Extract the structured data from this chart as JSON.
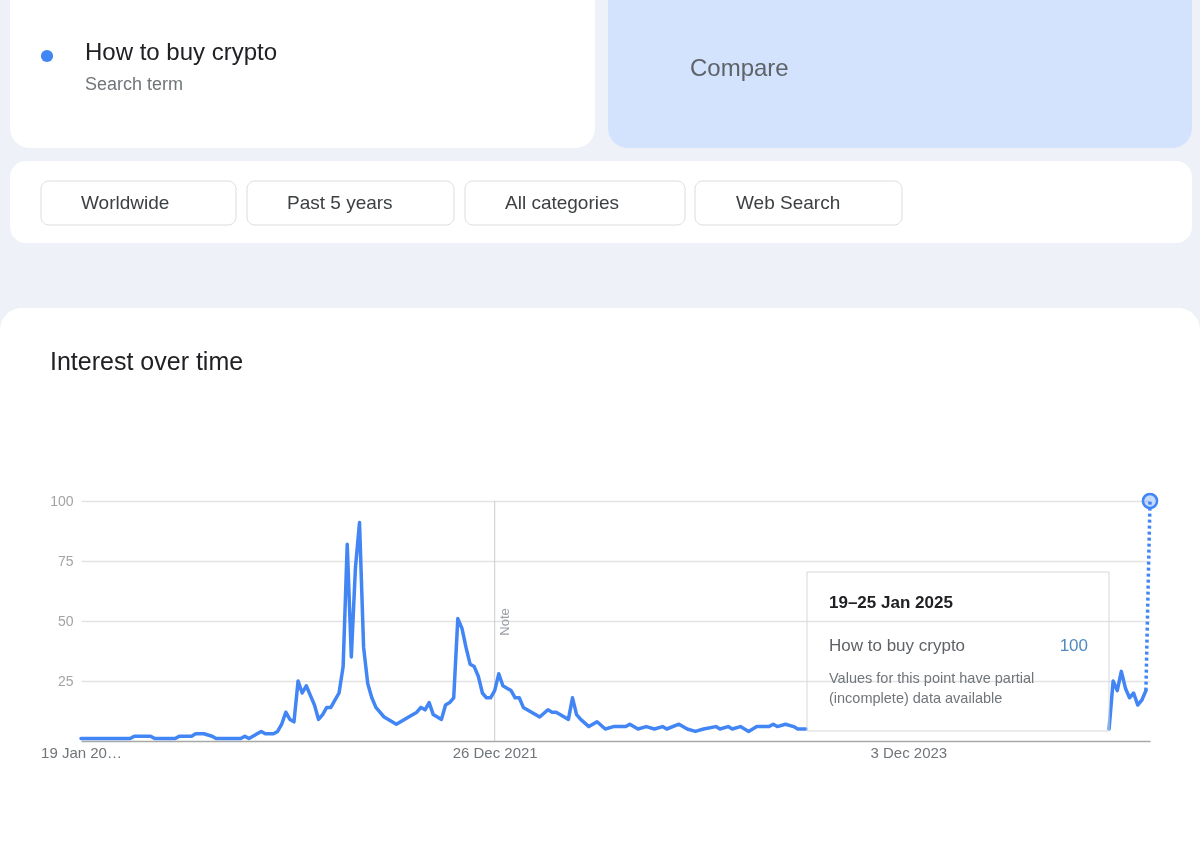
{
  "chart_data": {
    "type": "line",
    "title": "Interest over time",
    "legend": "top left",
    "grid": "y",
    "xlim": [
      "2020-01-19",
      "2025-01-19"
    ],
    "xticks": [
      {
        "value": "2020-01-19",
        "label": "19 Jan 20…"
      },
      {
        "value": "2021-12-26",
        "label": "26 Dec 2021"
      },
      {
        "value": "2023-12-03",
        "label": "3 Dec 2023"
      }
    ],
    "ylim": [
      0,
      100
    ],
    "yticks": [
      25,
      50,
      75,
      100
    ],
    "ref_lines": [
      {
        "axis": "x",
        "value": "2021-12-26",
        "label": "Note",
        "color": "#cccccc"
      }
    ],
    "series": [
      {
        "name": "How to buy crypto",
        "color": "#4285f4",
        "x": [
          "2020-01-19",
          "2020-04-12",
          "2020-04-19",
          "2020-05-17",
          "2020-05-24",
          "2020-06-28",
          "2020-07-05",
          "2020-07-26",
          "2020-08-02",
          "2020-08-16",
          "2020-08-30",
          "2020-09-06",
          "2020-10-18",
          "2020-10-25",
          "2020-11-01",
          "2020-11-15",
          "2020-11-22",
          "2020-11-29",
          "2020-12-13",
          "2020-12-20",
          "2020-12-27",
          "2021-01-03",
          "2021-01-10",
          "2021-01-17",
          "2021-01-24",
          "2021-01-31",
          "2021-02-07",
          "2021-02-14",
          "2021-02-21",
          "2021-02-28",
          "2021-03-07",
          "2021-03-14",
          "2021-03-21",
          "2021-03-28",
          "2021-04-04",
          "2021-04-11",
          "2021-04-18",
          "2021-04-25",
          "2021-05-02",
          "2021-05-09",
          "2021-05-16",
          "2021-05-23",
          "2021-05-30",
          "2021-06-06",
          "2021-06-20",
          "2021-07-11",
          "2021-08-01",
          "2021-08-15",
          "2021-08-22",
          "2021-08-29",
          "2021-09-05",
          "2021-09-12",
          "2021-09-26",
          "2021-10-03",
          "2021-10-10",
          "2021-10-17",
          "2021-10-24",
          "2021-10-31",
          "2021-11-07",
          "2021-11-14",
          "2021-11-21",
          "2021-11-28",
          "2021-12-05",
          "2021-12-12",
          "2021-12-19",
          "2021-12-26",
          "2022-01-02",
          "2022-01-09",
          "2022-01-16",
          "2022-01-23",
          "2022-01-30",
          "2022-02-06",
          "2022-02-13",
          "2022-02-27",
          "2022-03-13",
          "2022-03-27",
          "2022-04-03",
          "2022-04-10",
          "2022-04-24",
          "2022-05-01",
          "2022-05-08",
          "2022-05-15",
          "2022-05-22",
          "2022-06-05",
          "2022-06-19",
          "2022-07-03",
          "2022-07-17",
          "2022-08-07",
          "2022-08-14",
          "2022-08-28",
          "2022-09-11",
          "2022-09-25",
          "2022-10-09",
          "2022-10-16",
          "2022-11-06",
          "2022-11-20",
          "2022-12-04",
          "2022-12-18",
          "2023-01-08",
          "2023-01-15",
          "2023-01-29",
          "2023-02-05",
          "2023-02-19",
          "2023-03-05",
          "2023-03-19",
          "2023-04-09",
          "2023-04-16",
          "2023-04-23",
          "2023-05-07",
          "2023-05-21",
          "2023-05-28",
          "2023-06-11",
          "2023-06-18",
          "2024-11-03",
          "2024-11-10",
          "2024-11-17",
          "2024-11-24",
          "2024-12-01",
          "2024-12-08",
          "2024-12-15",
          "2024-12-22",
          "2024-12-29",
          "2025-01-05",
          "2025-01-12"
        ],
        "values": [
          1,
          1,
          2,
          2,
          1,
          1,
          2,
          2,
          3,
          3,
          2,
          1,
          1,
          2,
          1,
          3,
          4,
          3,
          3,
          4,
          7,
          12,
          9,
          8,
          25,
          20,
          23,
          19,
          15,
          9,
          11,
          14,
          14,
          17,
          20,
          31,
          82,
          35,
          72,
          91,
          39,
          24,
          18,
          14,
          10,
          7,
          10,
          12,
          14,
          13,
          16,
          11,
          9,
          15,
          16,
          18,
          51,
          47,
          39,
          32,
          31,
          27,
          20,
          18,
          18,
          21,
          28,
          23,
          22,
          21,
          18,
          18,
          14,
          12,
          10,
          13,
          12,
          12,
          10,
          9,
          18,
          11,
          9,
          6,
          8,
          5,
          6,
          6,
          7,
          5,
          6,
          5,
          6,
          5,
          7,
          5,
          4,
          5,
          6,
          5,
          6,
          5,
          6,
          4,
          6,
          6,
          7,
          6,
          7,
          6,
          5,
          5,
          null,
          null,
          5,
          25,
          21,
          29,
          22,
          18,
          20,
          15,
          17,
          21
        ]
      },
      {
        "type": "line",
        "color": "#4285f4",
        "line_style": "dotted",
        "x": [
          "2025-01-12",
          "2025-01-19"
        ],
        "values": [
          21,
          100
        ]
      },
      {
        "type": "scatter",
        "color": "#4285f4",
        "marker": "circle",
        "x": [
          "2025-01-19"
        ],
        "values": [
          100
        ]
      }
    ],
    "annotations": [
      "Search term",
      "Compare",
      "Worldwide",
      "Past 5 years",
      "All categories",
      "Web Search",
      "19–25 Jan 2025",
      "How to buy crypto",
      "100",
      "Values for this point have partial\n(incomplete) data available"
    ]
  }
}
